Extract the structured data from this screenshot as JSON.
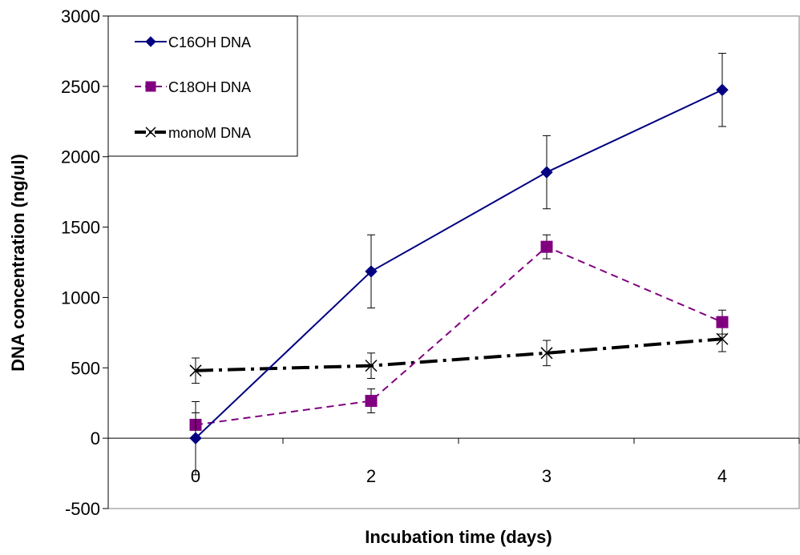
{
  "chart_data": {
    "type": "line",
    "title": "",
    "xlabel": "Incubation time (days)",
    "ylabel": "DNA concentration (ng/ul)",
    "categories": [
      "0",
      "2",
      "3",
      "4"
    ],
    "ylim": [
      -500,
      3000
    ],
    "yticks": [
      "3000",
      "2500",
      "2000",
      "1500",
      "1000",
      "500",
      "0",
      "-500"
    ],
    "ytick_values": [
      3000,
      2500,
      2000,
      1500,
      1000,
      500,
      0,
      -500
    ],
    "grid": false,
    "legend_position": "top-left",
    "series": [
      {
        "name": "C16OH DNA",
        "values": [
          0,
          1185,
          1890,
          2475
        ],
        "errors": [
          260,
          260,
          260,
          260
        ],
        "color": "#000080",
        "marker": "diamond",
        "line_style": "solid"
      },
      {
        "name": "C18OH DNA",
        "values": [
          95,
          265,
          1360,
          825
        ],
        "errors": [
          85,
          85,
          85,
          85
        ],
        "color": "#800080",
        "marker": "square",
        "line_style": "dashed"
      },
      {
        "name": "monoM DNA",
        "values": [
          480,
          515,
          605,
          705
        ],
        "errors": [
          90,
          90,
          90,
          90
        ],
        "color": "#000000",
        "marker": "x",
        "line_style": "dash-dot"
      }
    ]
  }
}
